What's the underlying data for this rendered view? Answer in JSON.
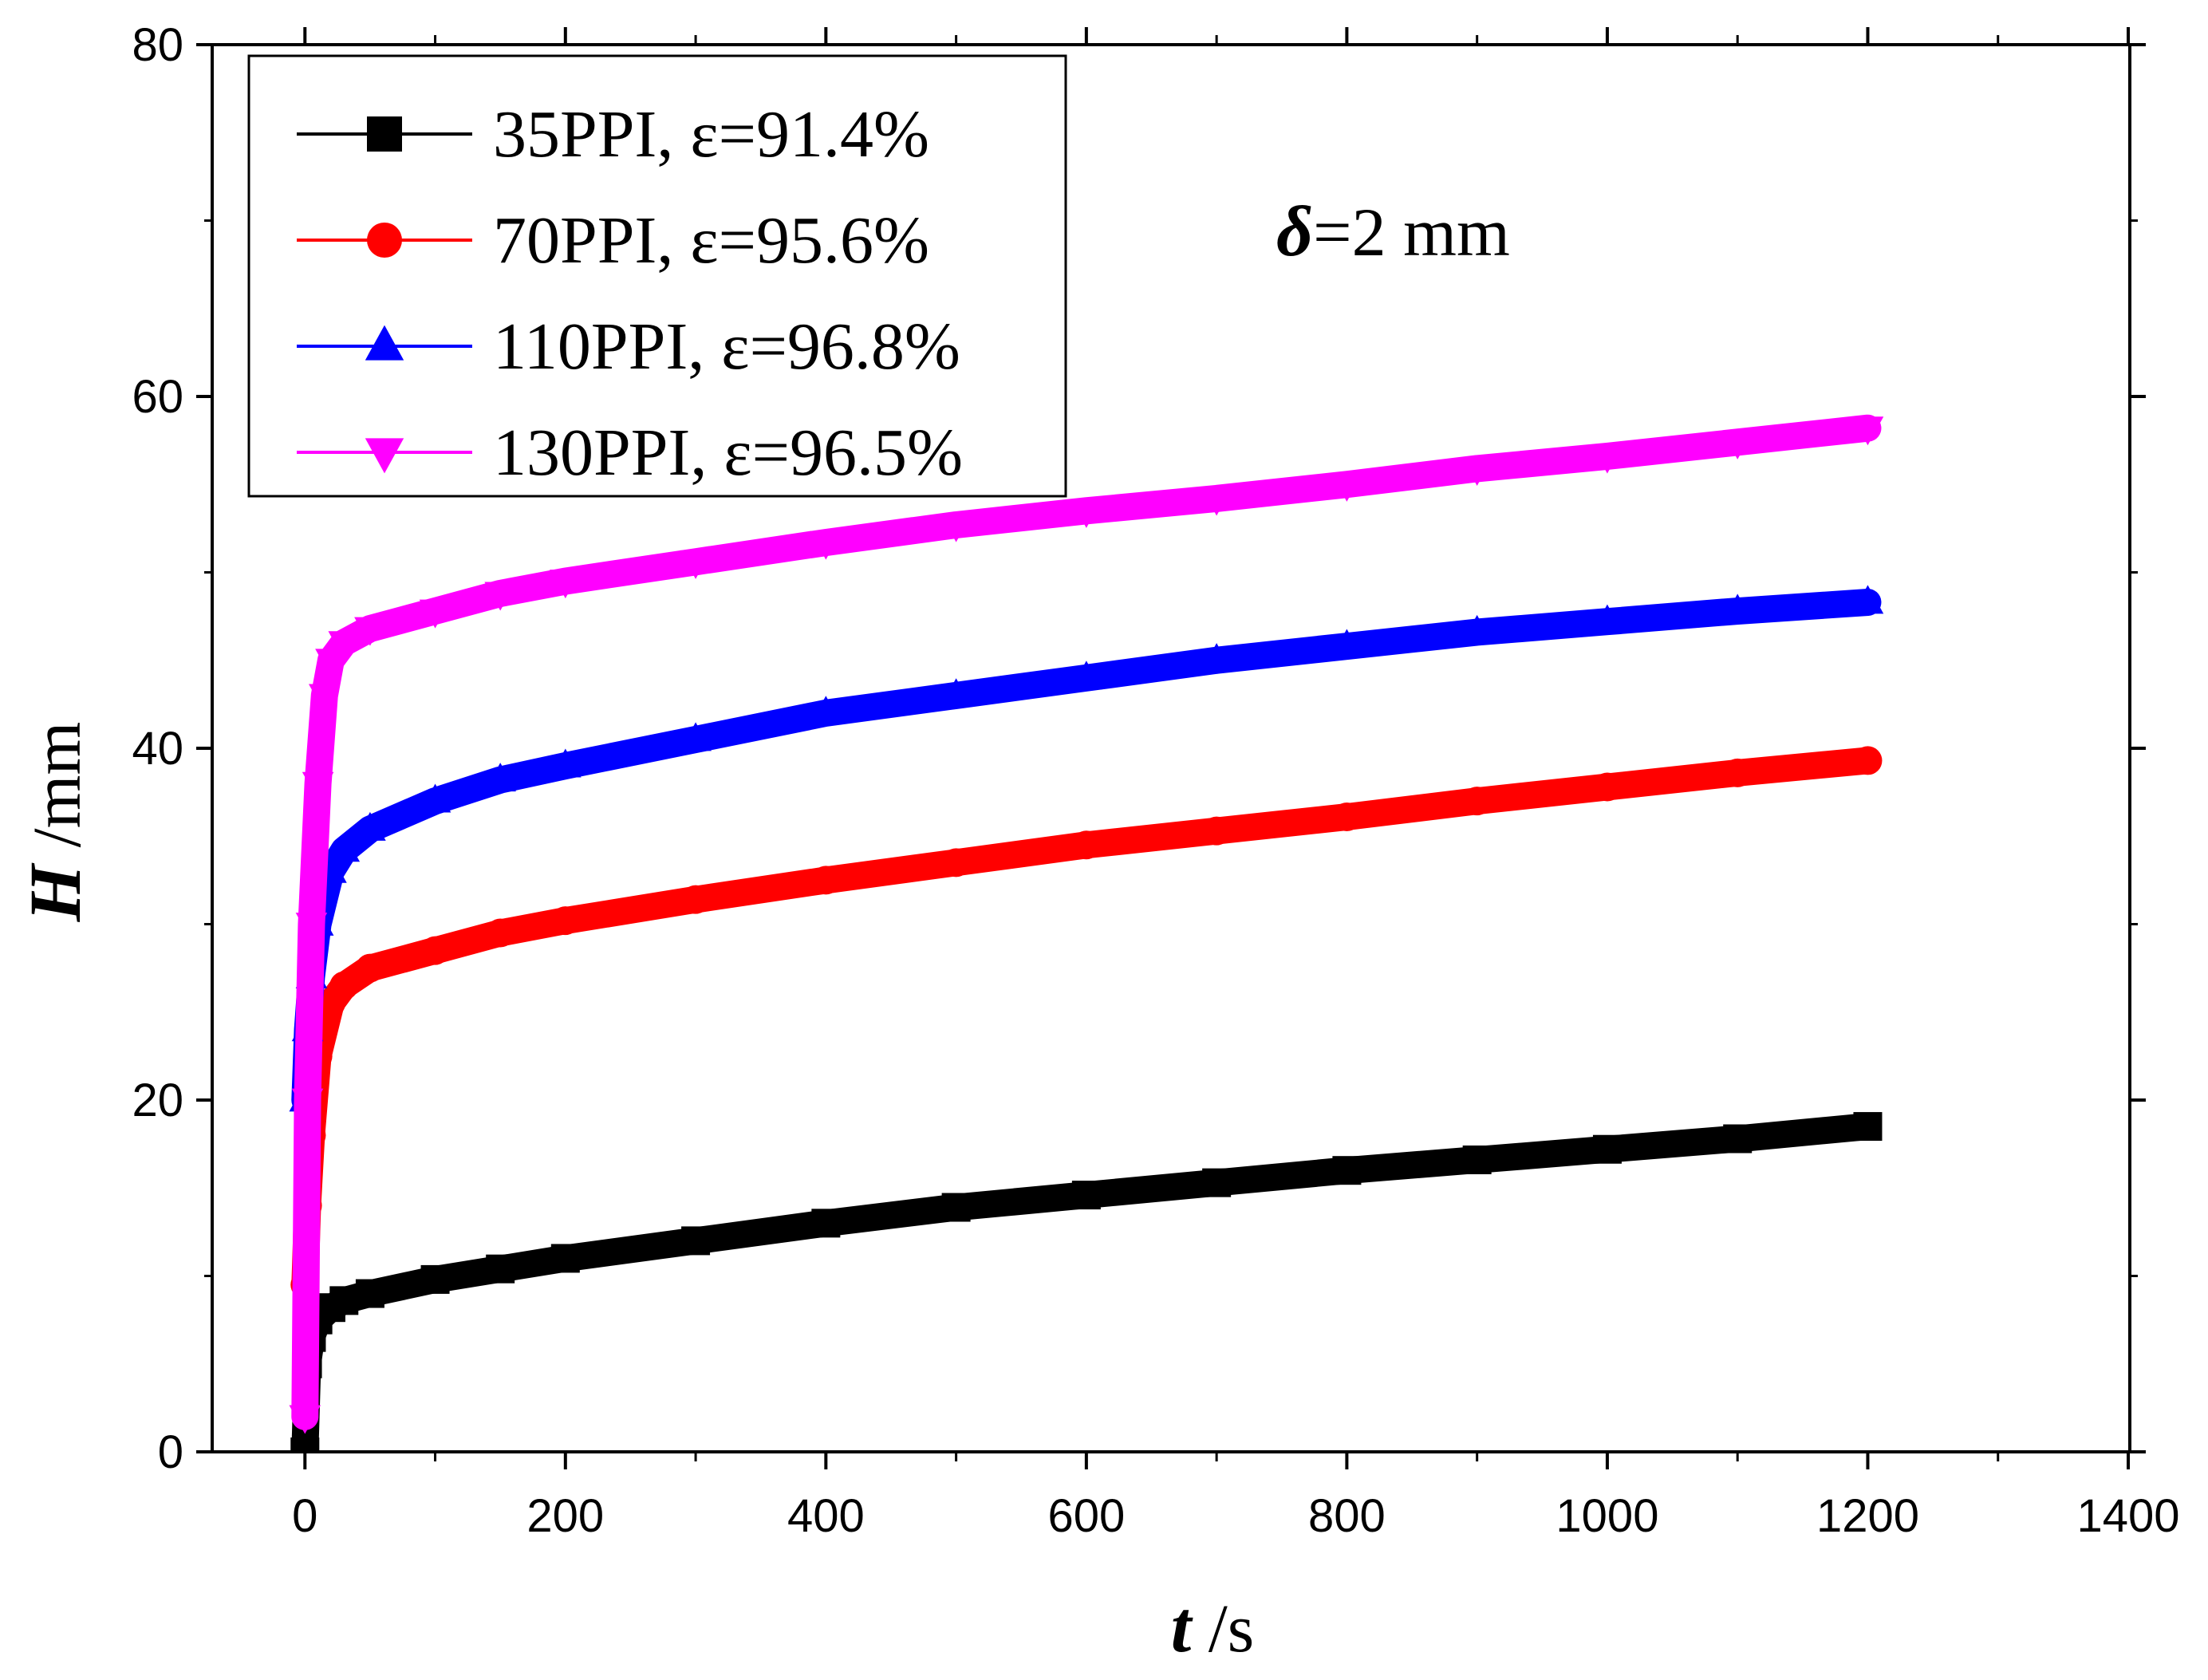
{
  "chart_data": {
    "type": "scatter",
    "title": "",
    "xlabel_symbol": "t",
    "xlabel_unit": " /s",
    "ylabel_symbol": "H",
    "ylabel_unit": " /mm",
    "xlim": [
      -70,
      1400
    ],
    "ylim": [
      0,
      80
    ],
    "xticks": [
      0,
      200,
      400,
      600,
      800,
      1000,
      1200,
      1400
    ],
    "xtick_labels": [
      "0",
      "200",
      "400",
      "600",
      "800",
      "1000",
      "1200",
      "1400"
    ],
    "yticks": [
      0,
      20,
      40,
      60,
      80
    ],
    "ytick_labels": [
      "0",
      "20",
      "40",
      "60",
      "80"
    ],
    "legend_position": "top-left",
    "annotation": {
      "symbol": "δ",
      "text": "=2 mm"
    },
    "series": [
      {
        "name": "35PPI, ε=91.4%",
        "color": "#000000",
        "marker": "square",
        "x": [
          0,
          2,
          5,
          10,
          20,
          30,
          50,
          100,
          150,
          200,
          300,
          400,
          500,
          600,
          700,
          800,
          900,
          1000,
          1100,
          1200
        ],
        "y": [
          0,
          5,
          6.5,
          7.5,
          8.2,
          8.6,
          9.0,
          9.8,
          10.4,
          11.0,
          12.0,
          13.0,
          13.9,
          14.6,
          15.3,
          16.0,
          16.6,
          17.2,
          17.8,
          18.5
        ]
      },
      {
        "name": "70PPI, ε=95.6%",
        "color": "#ff0000",
        "marker": "circle",
        "x": [
          0,
          2,
          5,
          10,
          20,
          30,
          50,
          100,
          150,
          200,
          300,
          400,
          500,
          600,
          700,
          800,
          900,
          1000,
          1100,
          1200
        ],
        "y": [
          9.5,
          14,
          18,
          22.5,
          25.5,
          26.5,
          27.5,
          28.5,
          29.5,
          30.2,
          31.4,
          32.5,
          33.5,
          34.5,
          35.3,
          36.1,
          37.0,
          37.8,
          38.6,
          39.3
        ]
      },
      {
        "name": "110PPI, ε=96.8%",
        "color": "#0000ff",
        "marker": "triangle-up",
        "x": [
          0,
          2,
          5,
          10,
          20,
          30,
          50,
          100,
          150,
          200,
          300,
          400,
          500,
          600,
          700,
          800,
          900,
          1000,
          1100,
          1200
        ],
        "y": [
          20,
          24,
          27,
          30,
          33,
          34.2,
          35.4,
          37.0,
          38.2,
          39.0,
          40.5,
          42.0,
          43.0,
          44.0,
          45.0,
          45.8,
          46.6,
          47.2,
          47.8,
          48.3
        ]
      },
      {
        "name": "130PPI, ε=96.5%",
        "color": "#ff00ff",
        "marker": "triangle-down",
        "x": [
          0,
          2,
          5,
          10,
          15,
          20,
          30,
          50,
          100,
          150,
          200,
          300,
          400,
          500,
          600,
          700,
          800,
          900,
          1000,
          1100,
          1200
        ],
        "y": [
          2,
          20,
          30,
          38,
          43,
          45,
          46,
          46.8,
          47.8,
          48.8,
          49.5,
          50.6,
          51.7,
          52.7,
          53.5,
          54.2,
          55.0,
          55.9,
          56.6,
          57.4,
          58.2
        ]
      }
    ]
  }
}
